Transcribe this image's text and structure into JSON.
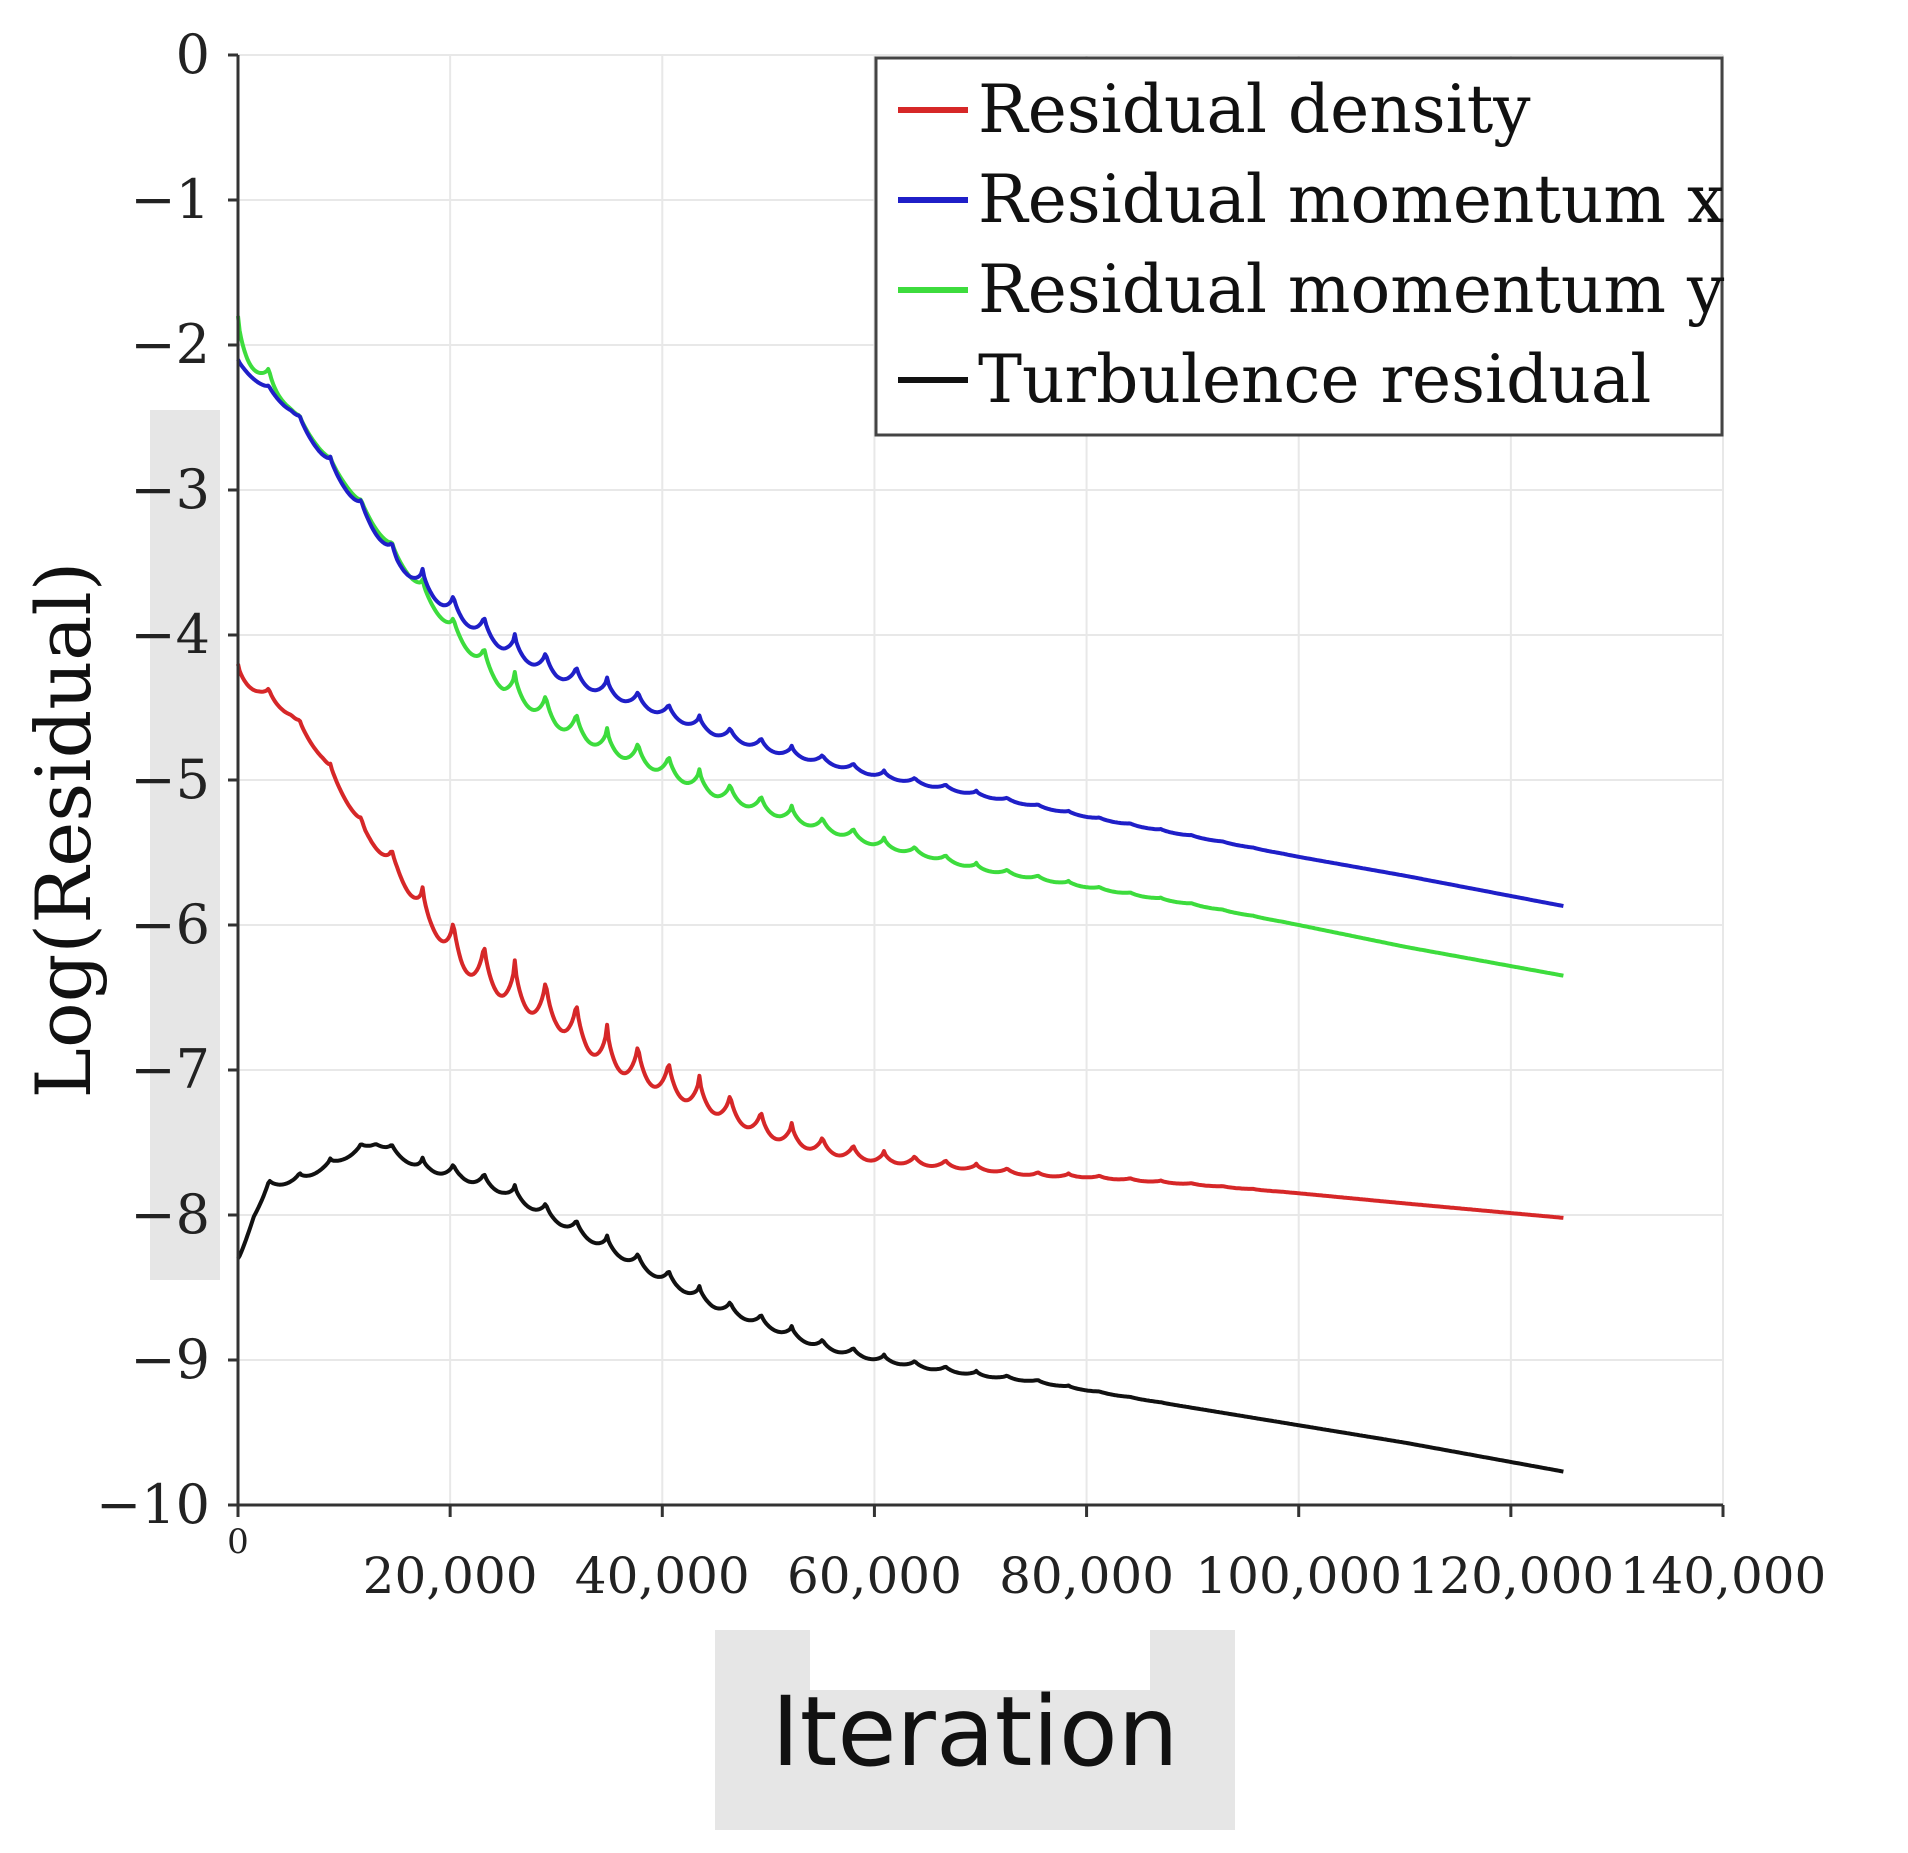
{
  "chart_data": {
    "type": "line",
    "title": "",
    "xlabel": "Iteration",
    "ylabel": "Log(Residual)",
    "xlim": [
      0,
      140000
    ],
    "ylim": [
      -10,
      0
    ],
    "x_ticks": [
      {
        "value": 0,
        "label": "0"
      },
      {
        "value": 20000,
        "label": "20,000"
      },
      {
        "value": 40000,
        "label": "40,000"
      },
      {
        "value": 60000,
        "label": "60,000"
      },
      {
        "value": 80000,
        "label": "80,000"
      },
      {
        "value": 100000,
        "label": "100,000"
      },
      {
        "value": 120000,
        "label": "120,000"
      },
      {
        "value": 140000,
        "label": "140,000"
      }
    ],
    "y_ticks": [
      {
        "value": 0,
        "label": "0"
      },
      {
        "value": -1,
        "label": "−1"
      },
      {
        "value": -2,
        "label": "−2"
      },
      {
        "value": -3,
        "label": "−3"
      },
      {
        "value": -4,
        "label": "−4"
      },
      {
        "value": -5,
        "label": "−5"
      },
      {
        "value": -6,
        "label": "−6"
      },
      {
        "value": -7,
        "label": "−7"
      },
      {
        "value": -8,
        "label": "−8"
      },
      {
        "value": -9,
        "label": "−9"
      },
      {
        "value": -10,
        "label": "−10"
      }
    ],
    "grid": true,
    "legend_position": "top-right",
    "series": [
      {
        "name": "Residual density",
        "color": "#d62728",
        "x": [
          0,
          2000,
          5000,
          8000,
          12000,
          15000,
          18000,
          21000,
          25000,
          30000,
          35000,
          40000,
          45000,
          50000,
          55000,
          60000,
          65000,
          70000,
          75000,
          80000,
          90000,
          100000,
          110000,
          125000
        ],
        "y": [
          -4.2,
          -4.3,
          -4.5,
          -4.8,
          -5.3,
          -5.5,
          -5.8,
          -6.0,
          -6.2,
          -6.4,
          -6.7,
          -6.9,
          -7.1,
          -7.3,
          -7.45,
          -7.55,
          -7.6,
          -7.65,
          -7.7,
          -7.72,
          -7.78,
          -7.85,
          -7.92,
          -8.02
        ],
        "oscillation_amplitude": [
          0.12,
          0.1,
          0.06,
          0.06,
          0.08,
          0.15,
          0.2,
          0.3,
          0.3,
          0.3,
          0.28,
          0.24,
          0.2,
          0.16,
          0.12,
          0.08,
          0.06,
          0.04,
          0.03,
          0.02,
          0.01,
          0.0,
          0.0,
          0.0
        ]
      },
      {
        "name": "Residual momentum x",
        "color": "#1f1fc8",
        "x": [
          0,
          5000,
          10000,
          15000,
          20000,
          25000,
          30000,
          35000,
          40000,
          45000,
          50000,
          55000,
          60000,
          65000,
          70000,
          75000,
          80000,
          90000,
          100000,
          110000,
          125000
        ],
        "y": [
          -2.1,
          -2.4,
          -2.9,
          -3.4,
          -3.7,
          -3.95,
          -4.15,
          -4.3,
          -4.45,
          -4.6,
          -4.72,
          -4.82,
          -4.92,
          -5.0,
          -5.08,
          -5.16,
          -5.24,
          -5.38,
          -5.53,
          -5.66,
          -5.87
        ],
        "oscillation_amplitude": [
          0.04,
          0.06,
          0.08,
          0.12,
          0.15,
          0.15,
          0.14,
          0.12,
          0.1,
          0.09,
          0.08,
          0.06,
          0.05,
          0.04,
          0.03,
          0.02,
          0.015,
          0.01,
          0.0,
          0.0,
          0.0
        ]
      },
      {
        "name": "Residual momentum y",
        "color": "#3ddc3d",
        "x": [
          0,
          5000,
          10000,
          15000,
          20000,
          25000,
          30000,
          35000,
          40000,
          45000,
          50000,
          55000,
          60000,
          65000,
          70000,
          75000,
          80000,
          90000,
          100000,
          110000,
          125000
        ],
        "y": [
          -1.8,
          -2.4,
          -2.9,
          -3.4,
          -3.85,
          -4.2,
          -4.45,
          -4.65,
          -4.8,
          -4.98,
          -5.12,
          -5.25,
          -5.38,
          -5.48,
          -5.58,
          -5.65,
          -5.72,
          -5.85,
          -6.0,
          -6.15,
          -6.35
        ],
        "oscillation_amplitude": [
          0.25,
          0.05,
          0.05,
          0.08,
          0.12,
          0.18,
          0.18,
          0.16,
          0.15,
          0.13,
          0.11,
          0.09,
          0.07,
          0.05,
          0.04,
          0.03,
          0.02,
          0.01,
          0.0,
          0.0,
          0.0
        ]
      },
      {
        "name": "Turbulence residual",
        "color": "#111111",
        "x": [
          0,
          1500,
          3000,
          6000,
          9000,
          13000,
          17000,
          21000,
          25000,
          30000,
          35000,
          40000,
          45000,
          50000,
          55000,
          60000,
          65000,
          70000,
          75000,
          80000,
          90000,
          100000,
          110000,
          125000
        ],
        "y": [
          -8.3,
          -7.95,
          -7.75,
          -7.7,
          -7.6,
          -7.45,
          -7.6,
          -7.65,
          -7.75,
          -7.95,
          -8.15,
          -8.35,
          -8.55,
          -8.7,
          -8.85,
          -8.95,
          -9.02,
          -9.08,
          -9.13,
          -9.2,
          -9.33,
          -9.45,
          -9.57,
          -9.77
        ],
        "oscillation_amplitude": [
          0.05,
          0.06,
          0.06,
          0.06,
          0.05,
          0.06,
          0.08,
          0.1,
          0.1,
          0.1,
          0.1,
          0.1,
          0.09,
          0.08,
          0.07,
          0.05,
          0.04,
          0.03,
          0.02,
          0.01,
          0.0,
          0.0,
          0.0,
          0.0
        ]
      }
    ]
  }
}
